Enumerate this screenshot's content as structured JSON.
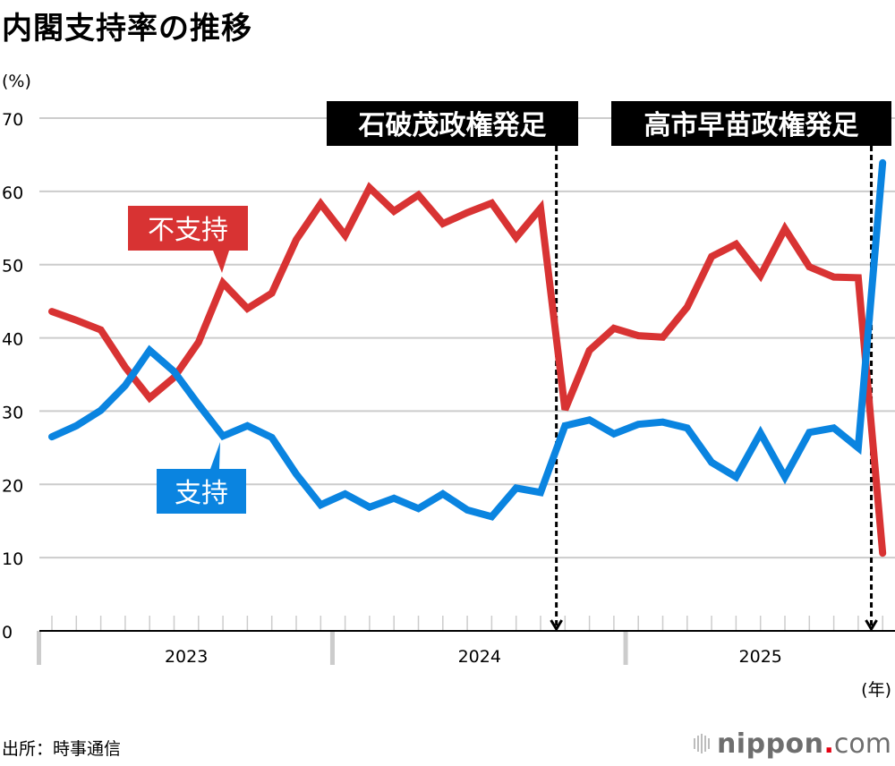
{
  "title": "内閣支持率の推移",
  "unit_label": "(%)",
  "x_unit_label": "(年)",
  "source": "出所：時事通信",
  "logo": {
    "name": "nippon",
    "dot": ".",
    "suffix": "com"
  },
  "colors": {
    "support": "#0a84e0",
    "disapproval": "#d83333",
    "grid": "#cccccc",
    "axis": "#000000",
    "annotation_bg": "#000000"
  },
  "chart_data": {
    "type": "line",
    "title": "内閣支持率の推移",
    "xlabel": "(年)",
    "ylabel": "(%)",
    "ylim": [
      0,
      70
    ],
    "yticks": [
      0,
      10,
      20,
      30,
      40,
      50,
      60,
      70
    ],
    "ytick_labels": [
      "0",
      "10",
      "20",
      "30",
      "40",
      "50",
      "60",
      "70"
    ],
    "grid": true,
    "years": [
      {
        "label": "2023",
        "months": 12
      },
      {
        "label": "2024",
        "months": 12
      },
      {
        "label": "2025",
        "months": 11
      }
    ],
    "x": [
      1,
      2,
      3,
      4,
      5,
      6,
      7,
      8,
      9,
      10,
      11,
      12,
      13,
      14,
      15,
      16,
      17,
      18,
      19,
      20,
      21,
      22,
      23,
      24,
      25,
      26,
      27,
      28,
      29,
      30,
      31,
      32,
      33,
      34,
      35
    ],
    "series": [
      {
        "name": "不支持",
        "color": "#d83333",
        "values": [
          43.6,
          42.4,
          41.1,
          36.0,
          31.8,
          34.6,
          39.4,
          47.5,
          44.0,
          46.1,
          53.4,
          58.3,
          54.0,
          60.5,
          57.3,
          59.5,
          55.6,
          57.1,
          58.4,
          53.7,
          57.7,
          30.2,
          38.3,
          41.3,
          40.3,
          40.1,
          44.2,
          51.1,
          52.8,
          48.5,
          54.9,
          49.7,
          48.3,
          48.2,
          10.6
        ]
      },
      {
        "name": "支持",
        "color": "#0a84e0",
        "values": [
          26.5,
          28.0,
          30.1,
          33.5,
          38.3,
          35.4,
          30.9,
          26.6,
          28.0,
          26.4,
          21.4,
          17.2,
          18.7,
          16.9,
          18.1,
          16.7,
          18.7,
          16.5,
          15.6,
          19.5,
          18.9,
          28.0,
          28.8,
          26.9,
          28.2,
          28.5,
          27.7,
          23.0,
          21.0,
          27.0,
          21.0,
          27.1,
          27.7,
          25.0,
          63.9
        ]
      }
    ],
    "annotations": [
      {
        "text": "石破茂政権発足",
        "at_index": 20.5
      },
      {
        "text": "高市早苗政権発足",
        "at_index": 33.5
      }
    ]
  }
}
